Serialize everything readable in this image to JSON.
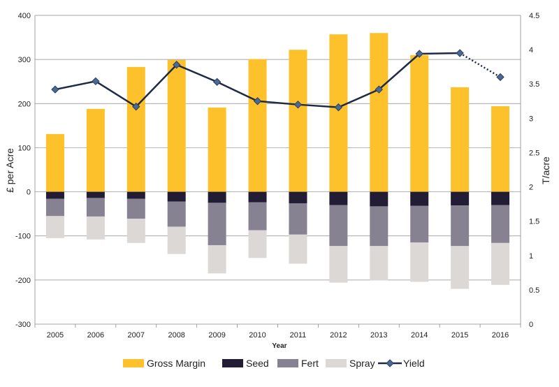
{
  "chart_data": {
    "type": "bar",
    "xlabel": "Year",
    "ylabel": "£ per Acre",
    "y2label": "T/acre",
    "ylim": [
      -300,
      400
    ],
    "y2lim": [
      0,
      4.5
    ],
    "yticks": [
      "400",
      "300",
      "200",
      "100",
      "0",
      "-100",
      "-200",
      "-300"
    ],
    "y2ticks": [
      "4.5",
      "4",
      "3.5",
      "3",
      "2.5",
      "2",
      "1.5",
      "1",
      "0.5",
      "0"
    ],
    "categories": [
      "2005",
      "2006",
      "2007",
      "2008",
      "2009",
      "2010",
      "2011",
      "2012",
      "2013",
      "2014",
      "2015",
      "2016"
    ],
    "grid": true,
    "legend_position": "bottom",
    "stacked_negative_order": [
      "Seed",
      "Fert",
      "Spray"
    ],
    "series": [
      {
        "name": "Gross Margin",
        "kind": "bar",
        "color": "#FDC12B",
        "values": [
          131,
          188,
          283,
          299,
          191,
          301,
          322,
          357,
          360,
          310,
          237,
          194
        ]
      },
      {
        "name": "Seed",
        "kind": "bar",
        "color": "#221C35",
        "values": [
          -16,
          -14,
          -16,
          -22,
          -25,
          -24,
          -26,
          -30,
          -33,
          -32,
          -31,
          -30
        ]
      },
      {
        "name": "Fert",
        "kind": "bar",
        "color": "#878291",
        "values": [
          -39,
          -42,
          -45,
          -57,
          -96,
          -63,
          -71,
          -93,
          -90,
          -83,
          -92,
          -86
        ]
      },
      {
        "name": "Spray",
        "kind": "bar",
        "color": "#DBD8D5",
        "values": [
          -50,
          -52,
          -55,
          -62,
          -64,
          -63,
          -66,
          -83,
          -78,
          -89,
          -97,
          -95
        ]
      },
      {
        "name": "Yield",
        "kind": "line",
        "axis": "right",
        "color": "#1F2A44",
        "marker_color": "#4A6A96",
        "values": [
          3.42,
          3.54,
          3.17,
          3.78,
          3.53,
          3.25,
          3.2,
          3.16,
          3.42,
          3.94,
          3.95,
          3.6
        ],
        "dashed_from_index": 10
      }
    ]
  }
}
